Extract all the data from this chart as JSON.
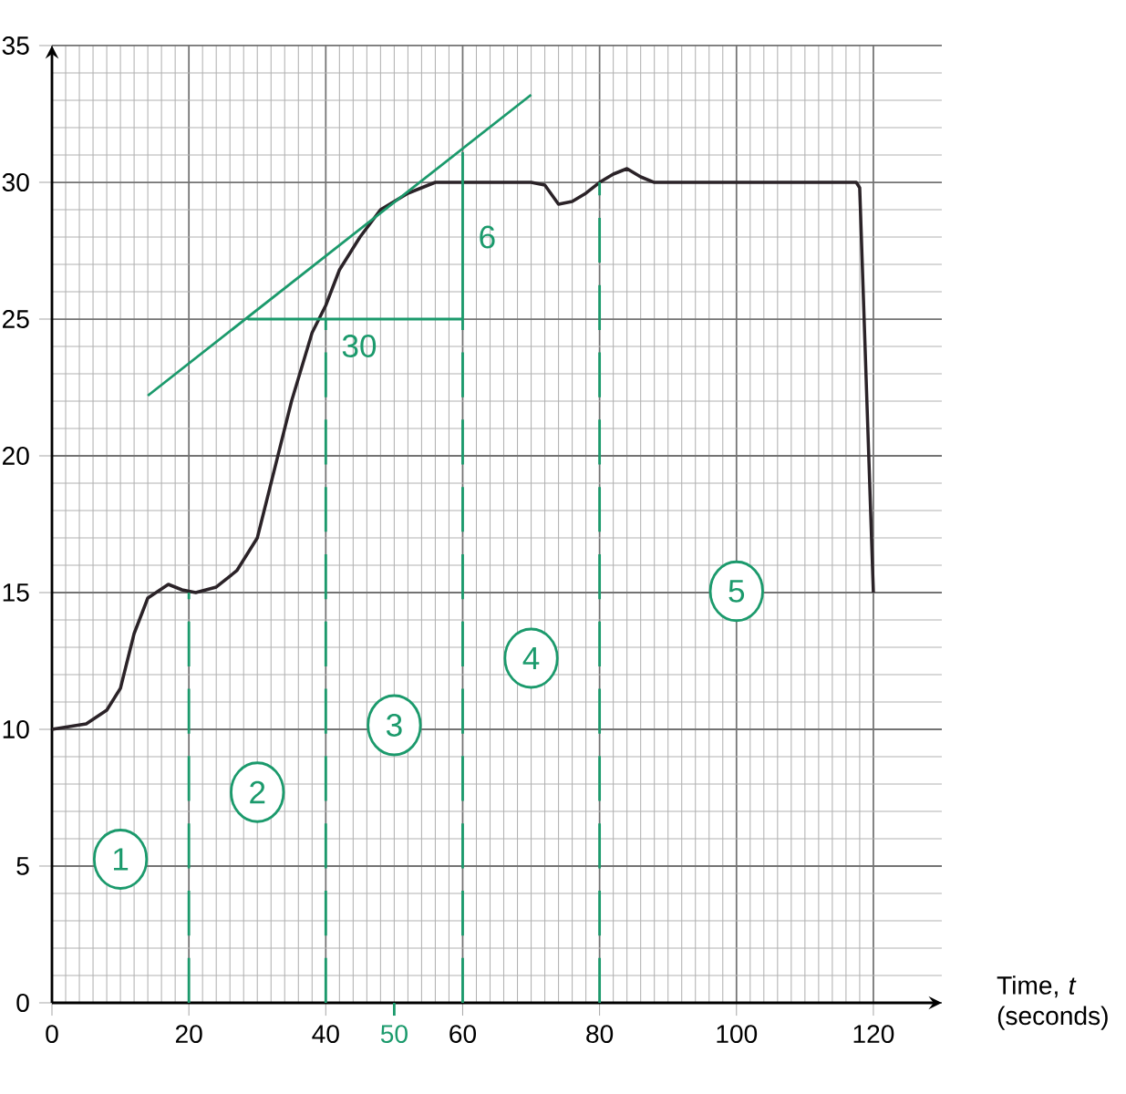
{
  "chart_data": {
    "type": "line",
    "xlabel": "Time, *t* (seconds)",
    "xlim": [
      0,
      130
    ],
    "ylim": [
      0,
      35
    ],
    "xticks": [
      0,
      20,
      40,
      60,
      80,
      100,
      120,
      {
        "value": 50,
        "label": "50"
      }
    ],
    "yticks": [
      0,
      5,
      10,
      15,
      20,
      25,
      30,
      35
    ],
    "grid": true,
    "marker": "none",
    "line_style": "solid",
    "series": [
      {
        "color": "#2b2328",
        "x": [
          0,
          5,
          8,
          10,
          12,
          14,
          17,
          19,
          21,
          24,
          27,
          30,
          32,
          35,
          38,
          40,
          42,
          45,
          48,
          52,
          56,
          60,
          65,
          70,
          72,
          74,
          76,
          78,
          80,
          82,
          84,
          86,
          88,
          100,
          117.5,
          118,
          120
        ],
        "values": [
          10,
          10.2,
          10.7,
          11.5,
          13.5,
          14.8,
          15.3,
          15.1,
          15,
          15.2,
          15.8,
          17,
          19,
          22,
          24.5,
          25.5,
          26.8,
          28,
          29,
          29.6,
          30,
          30,
          30,
          30,
          29.9,
          29.2,
          29.3,
          29.6,
          30,
          30.3,
          30.5,
          30.2,
          30,
          30,
          30,
          29.8,
          15
        ]
      },
      {
        "color": "#1b9a6c",
        "x": [
          14,
          70
        ],
        "values": [
          22.2,
          33.2
        ]
      },
      {
        "color": "#1b9a6c",
        "x": [
          28.6,
          60
        ],
        "values": [
          25,
          25
        ]
      },
      {
        "color": "#1b9a6c",
        "x": [
          60,
          60
        ],
        "values": [
          25,
          31.1
        ]
      },
      {
        "color": "#1b9a6c",
        "line_style": "dashed",
        "x": [
          20,
          20
        ],
        "values": [
          0,
          15
        ]
      },
      {
        "color": "#1b9a6c",
        "line_style": "dashed",
        "x": [
          40,
          40
        ],
        "values": [
          0,
          25
        ]
      },
      {
        "color": "#1b9a6c",
        "line_style": "dashed",
        "x": [
          60,
          60
        ],
        "values": [
          0,
          25
        ]
      },
      {
        "color": "#1b9a6c",
        "line_style": "dashed",
        "x": [
          80,
          80
        ],
        "values": [
          0,
          30
        ]
      }
    ],
    "annotations": [
      {
        "text": "30",
        "x": 40,
        "y": 25
      },
      {
        "text": "6",
        "x": 60,
        "y": 28
      },
      "1",
      "2",
      "3",
      "4",
      "5"
    ]
  }
}
